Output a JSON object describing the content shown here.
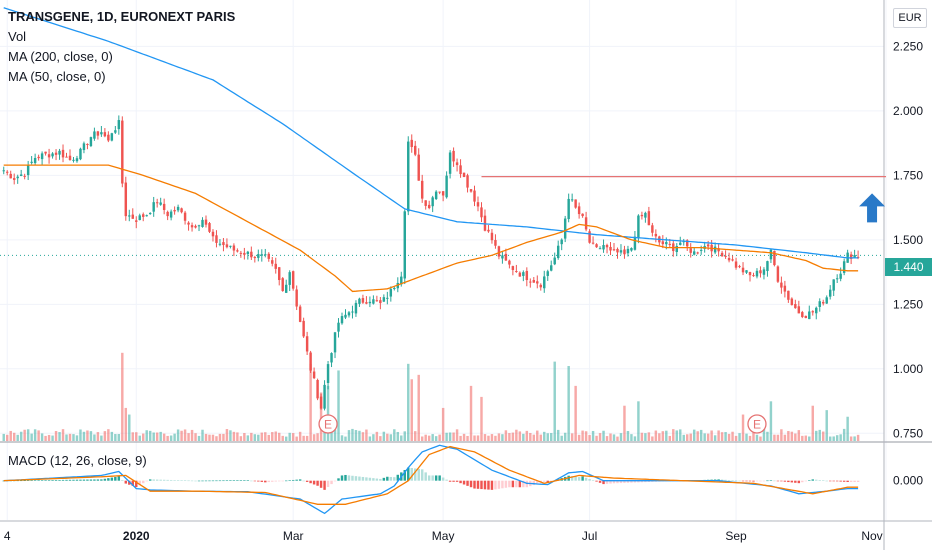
{
  "header": {
    "symbol_title": "TRANSGENE, 1D, EURONEXT PARIS",
    "volume_label": "Vol",
    "ma200_label": "MA (200, close, 0)",
    "ma50_label": "MA (50, close, 0)",
    "currency": "EUR"
  },
  "macd_label": "MACD (12, 26, close, 9)",
  "last_price_label": "1.440",
  "colors": {
    "up": "#26a69a",
    "down": "#ef5350",
    "ma200": "#2196f3",
    "ma50": "#f57c00",
    "resistance": "#e57373",
    "arrow": "#2979c8",
    "macd_line": "#2196f3",
    "signal_line": "#f57c00"
  },
  "icons": [
    "up-arrow-icon",
    "earnings-event-icon"
  ],
  "chart_data": {
    "type": "candlestick",
    "price_axis": {
      "ticks": [
        2.25,
        2.0,
        1.75,
        1.5,
        1.25,
        1.0,
        0.75
      ],
      "tick_labels": [
        "2.250",
        "2.000",
        "1.750",
        "1.500",
        "1.250",
        "1.000",
        "0.750"
      ],
      "range": [
        0.72,
        2.43
      ]
    },
    "macd_axis": {
      "tick_labels": [
        "0.000"
      ],
      "range": [
        -0.15,
        0.14
      ]
    },
    "time_axis": {
      "labels": [
        "4",
        "2020",
        "Mar",
        "May",
        "Jul",
        "Sep",
        "Nov"
      ],
      "label_bars": [
        1,
        38,
        83,
        126,
        168,
        210,
        253
      ],
      "bold": [
        "2020"
      ]
    },
    "bars": 246,
    "price_anchors": [
      [
        0,
        1.77
      ],
      [
        3,
        1.74
      ],
      [
        6,
        1.76
      ],
      [
        9,
        1.82
      ],
      [
        12,
        1.83
      ],
      [
        16,
        1.84
      ],
      [
        19,
        1.81
      ],
      [
        22,
        1.84
      ],
      [
        25,
        1.9
      ],
      [
        28,
        1.92
      ],
      [
        30,
        1.88
      ],
      [
        31,
        1.92
      ],
      [
        33,
        1.95
      ],
      [
        34,
        1.72
      ],
      [
        35,
        1.6
      ],
      [
        38,
        1.58
      ],
      [
        41,
        1.6
      ],
      [
        44,
        1.65
      ],
      [
        47,
        1.6
      ],
      [
        50,
        1.62
      ],
      [
        54,
        1.55
      ],
      [
        57,
        1.58
      ],
      [
        60,
        1.5
      ],
      [
        63,
        1.48
      ],
      [
        66,
        1.46
      ],
      [
        69,
        1.45
      ],
      [
        72,
        1.44
      ],
      [
        75,
        1.43
      ],
      [
        78,
        1.38
      ],
      [
        80,
        1.3
      ],
      [
        82,
        1.38
      ],
      [
        84,
        1.25
      ],
      [
        86,
        1.12
      ],
      [
        88,
        1.0
      ],
      [
        90,
        0.9
      ],
      [
        91,
        0.85
      ],
      [
        93,
        1.02
      ],
      [
        96,
        1.18
      ],
      [
        99,
        1.22
      ],
      [
        102,
        1.26
      ],
      [
        105,
        1.27
      ],
      [
        108,
        1.25
      ],
      [
        111,
        1.3
      ],
      [
        114,
        1.37
      ],
      [
        116,
        1.88
      ],
      [
        118,
        1.82
      ],
      [
        120,
        1.66
      ],
      [
        122,
        1.63
      ],
      [
        124,
        1.7
      ],
      [
        126,
        1.68
      ],
      [
        128,
        1.83
      ],
      [
        130,
        1.8
      ],
      [
        132,
        1.74
      ],
      [
        134,
        1.69
      ],
      [
        136,
        1.63
      ],
      [
        138,
        1.55
      ],
      [
        140,
        1.5
      ],
      [
        142,
        1.44
      ],
      [
        145,
        1.4
      ],
      [
        148,
        1.37
      ],
      [
        151,
        1.35
      ],
      [
        154,
        1.33
      ],
      [
        156,
        1.38
      ],
      [
        158,
        1.43
      ],
      [
        160,
        1.5
      ],
      [
        162,
        1.67
      ],
      [
        164,
        1.62
      ],
      [
        166,
        1.58
      ],
      [
        168,
        1.49
      ],
      [
        170,
        1.46
      ],
      [
        172,
        1.48
      ],
      [
        174,
        1.45
      ],
      [
        176,
        1.45
      ],
      [
        178,
        1.44
      ],
      [
        180,
        1.47
      ],
      [
        182,
        1.58
      ],
      [
        184,
        1.6
      ],
      [
        186,
        1.52
      ],
      [
        188,
        1.49
      ],
      [
        190,
        1.48
      ],
      [
        192,
        1.47
      ],
      [
        194,
        1.49
      ],
      [
        196,
        1.47
      ],
      [
        198,
        1.45
      ],
      [
        200,
        1.47
      ],
      [
        202,
        1.48
      ],
      [
        204,
        1.46
      ],
      [
        206,
        1.45
      ],
      [
        208,
        1.43
      ],
      [
        210,
        1.4
      ],
      [
        212,
        1.38
      ],
      [
        214,
        1.36
      ],
      [
        216,
        1.37
      ],
      [
        218,
        1.39
      ],
      [
        220,
        1.45
      ],
      [
        222,
        1.35
      ],
      [
        224,
        1.3
      ],
      [
        226,
        1.25
      ],
      [
        228,
        1.22
      ],
      [
        230,
        1.21
      ],
      [
        232,
        1.22
      ],
      [
        234,
        1.25
      ],
      [
        236,
        1.28
      ],
      [
        238,
        1.35
      ],
      [
        240,
        1.38
      ],
      [
        242,
        1.44
      ]
    ],
    "ma200_anchors": [
      [
        0,
        2.4
      ],
      [
        30,
        2.27
      ],
      [
        60,
        2.12
      ],
      [
        80,
        1.95
      ],
      [
        100,
        1.76
      ],
      [
        115,
        1.62
      ],
      [
        130,
        1.57
      ],
      [
        150,
        1.55
      ],
      [
        170,
        1.52
      ],
      [
        190,
        1.5
      ],
      [
        210,
        1.48
      ],
      [
        230,
        1.45
      ],
      [
        242,
        1.43
      ]
    ],
    "ma50_anchors": [
      [
        0,
        1.79
      ],
      [
        20,
        1.79
      ],
      [
        30,
        1.79
      ],
      [
        40,
        1.75
      ],
      [
        55,
        1.68
      ],
      [
        70,
        1.57
      ],
      [
        85,
        1.46
      ],
      [
        95,
        1.36
      ],
      [
        100,
        1.3
      ],
      [
        110,
        1.31
      ],
      [
        120,
        1.36
      ],
      [
        130,
        1.41
      ],
      [
        140,
        1.44
      ],
      [
        150,
        1.49
      ],
      [
        160,
        1.53
      ],
      [
        165,
        1.56
      ],
      [
        170,
        1.55
      ],
      [
        180,
        1.5
      ],
      [
        190,
        1.47
      ],
      [
        200,
        1.47
      ],
      [
        210,
        1.46
      ],
      [
        220,
        1.45
      ],
      [
        230,
        1.42
      ],
      [
        235,
        1.39
      ],
      [
        242,
        1.38
      ]
    ],
    "resistance_line": {
      "from_bar": 137,
      "to_bar": 253,
      "price": 1.745
    },
    "last_price": 1.44,
    "earnings_markers": [
      {
        "bar": 93,
        "label": "E"
      },
      {
        "bar": 216,
        "label": "E"
      }
    ],
    "volume_spikes": [
      [
        34,
        0.4
      ],
      [
        35,
        0.15
      ],
      [
        36,
        0.12
      ],
      [
        88,
        0.35
      ],
      [
        91,
        0.22
      ],
      [
        93,
        0.25
      ],
      [
        96,
        0.32
      ],
      [
        116,
        0.35
      ],
      [
        117,
        0.28
      ],
      [
        119,
        0.3
      ],
      [
        126,
        0.15
      ],
      [
        134,
        0.25
      ],
      [
        137,
        0.2
      ],
      [
        158,
        0.36
      ],
      [
        162,
        0.34
      ],
      [
        164,
        0.25
      ],
      [
        178,
        0.16
      ],
      [
        182,
        0.18
      ],
      [
        212,
        0.12
      ],
      [
        220,
        0.18
      ],
      [
        232,
        0.16
      ],
      [
        236,
        0.14
      ],
      [
        242,
        0.11
      ]
    ],
    "macd_anchors": [
      [
        0,
        0.0
      ],
      [
        28,
        0.02
      ],
      [
        33,
        0.035
      ],
      [
        38,
        -0.03
      ],
      [
        42,
        -0.035
      ],
      [
        55,
        -0.04
      ],
      [
        70,
        -0.042
      ],
      [
        85,
        -0.07
      ],
      [
        92,
        -0.125
      ],
      [
        97,
        -0.07
      ],
      [
        108,
        -0.05
      ],
      [
        112,
        -0.02
      ],
      [
        116,
        0.05
      ],
      [
        120,
        0.11
      ],
      [
        125,
        0.135
      ],
      [
        130,
        0.12
      ],
      [
        140,
        0.04
      ],
      [
        150,
        -0.01
      ],
      [
        156,
        -0.015
      ],
      [
        162,
        0.03
      ],
      [
        166,
        0.035
      ],
      [
        172,
        0.0
      ],
      [
        190,
        0.0
      ],
      [
        205,
        0.0
      ],
      [
        220,
        -0.02
      ],
      [
        228,
        -0.05
      ],
      [
        236,
        -0.04
      ],
      [
        242,
        -0.03
      ]
    ],
    "signal_anchors": [
      [
        0,
        0.0
      ],
      [
        28,
        0.015
      ],
      [
        35,
        0.02
      ],
      [
        42,
        -0.04
      ],
      [
        55,
        -0.04
      ],
      [
        75,
        -0.045
      ],
      [
        90,
        -0.09
      ],
      [
        98,
        -0.09
      ],
      [
        110,
        -0.05
      ],
      [
        116,
        0.0
      ],
      [
        122,
        0.1
      ],
      [
        128,
        0.13
      ],
      [
        135,
        0.11
      ],
      [
        145,
        0.04
      ],
      [
        155,
        -0.01
      ],
      [
        165,
        0.02
      ],
      [
        175,
        0.01
      ],
      [
        195,
        0.0
      ],
      [
        215,
        -0.01
      ],
      [
        232,
        -0.05
      ],
      [
        242,
        -0.025
      ]
    ]
  }
}
